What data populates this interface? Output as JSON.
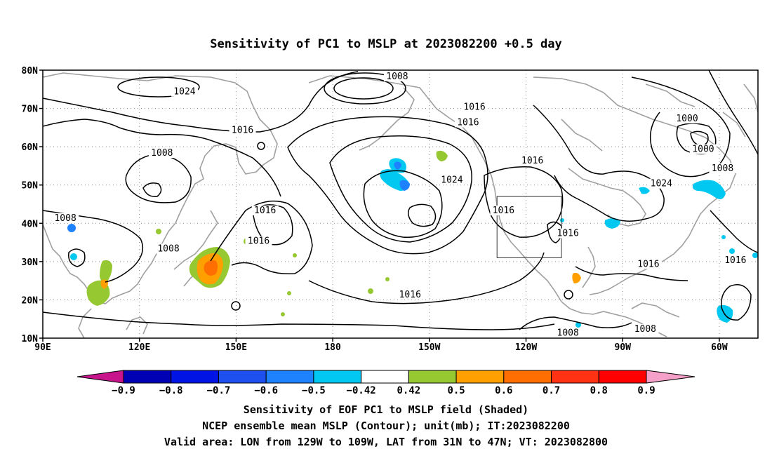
{
  "title": "Sensitivity of PC1 to MSLP at 2023082200 +0.5 day",
  "map": {
    "lat_ticks": [
      "80N",
      "70N",
      "60N",
      "50N",
      "40N",
      "30N",
      "20N",
      "10N"
    ],
    "lon_ticks": [
      "90E",
      "120E",
      "150E",
      "180",
      "150W",
      "120W",
      "90W",
      "60W"
    ],
    "contour_labels": [
      {
        "text": "1024",
        "lon": 134,
        "lat": 74
      },
      {
        "text": "1008",
        "lon": 200,
        "lat": 78
      },
      {
        "text": "1016",
        "lon": 152,
        "lat": 64
      },
      {
        "text": "1008",
        "lon": 127,
        "lat": 58
      },
      {
        "text": "1016",
        "lon": 224,
        "lat": 70
      },
      {
        "text": "1016",
        "lon": 222,
        "lat": 66
      },
      {
        "text": "1016",
        "lon": 242,
        "lat": 56
      },
      {
        "text": "1024",
        "lon": 217,
        "lat": 51
      },
      {
        "text": "1016",
        "lon": 233,
        "lat": 43
      },
      {
        "text": "1016",
        "lon": 159,
        "lat": 43
      },
      {
        "text": "1016",
        "lon": 157,
        "lat": 35
      },
      {
        "text": "1008",
        "lon": 97,
        "lat": 41
      },
      {
        "text": "1008",
        "lon": 129,
        "lat": 33
      },
      {
        "text": "1016",
        "lon": 204,
        "lat": 21
      },
      {
        "text": "1016",
        "lon": 253,
        "lat": 37
      },
      {
        "text": "1000",
        "lon": 290,
        "lat": 67
      },
      {
        "text": "1000",
        "lon": 295,
        "lat": 59
      },
      {
        "text": "1008",
        "lon": 301,
        "lat": 54
      },
      {
        "text": "1024",
        "lon": 282,
        "lat": 50
      },
      {
        "text": "1016",
        "lon": 278,
        "lat": 29
      },
      {
        "text": "1016",
        "lon": 305,
        "lat": 30
      },
      {
        "text": "1008",
        "lon": 253,
        "lat": 11
      },
      {
        "text": "1008",
        "lon": 277,
        "lat": 12
      }
    ],
    "valid_box": {
      "lon_min": 231,
      "lon_max": 251,
      "lat_min": 31,
      "lat_max": 47
    }
  },
  "colorbar": {
    "labels": [
      "−0.9",
      "−0.8",
      "−0.7",
      "−0.6",
      "−0.5",
      "−0.42",
      "0.42",
      "0.5",
      "0.6",
      "0.7",
      "0.8",
      "0.9"
    ],
    "colors": {
      "low_extend": "#c8148c",
      "segments": [
        "#0000b4",
        "#0014e6",
        "#1e50f0",
        "#1e82ff",
        "#00c8f0",
        "#ffffff",
        "#96c832",
        "#ffa000",
        "#ff6e00",
        "#ff3214",
        "#ff0000"
      ],
      "high_extend": "#f5a0c8"
    }
  },
  "notes": {
    "line1": "Sensitivity of EOF PC1 to MSLP field (Shaded)",
    "line2": "NCEP ensemble mean MSLP (Contour); unit(mb); IT:2023082200",
    "line3": "Valid area: LON from 129W to 109W, LAT from 31N to 47N; VT: 2023082800"
  }
}
